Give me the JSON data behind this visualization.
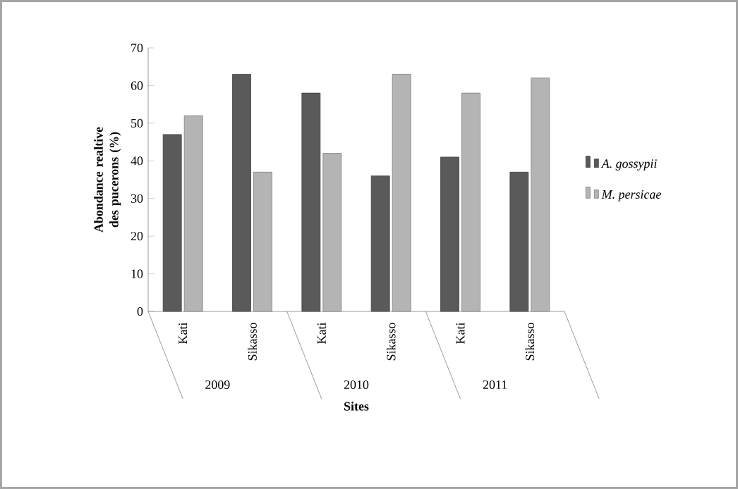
{
  "chart_data": {
    "type": "bar",
    "xlabel": "Sites",
    "ylabel": "Abondance realtive des pucerons (%)",
    "categories": [
      "Kati",
      "Sikasso",
      "Kati",
      "Sikasso",
      "Kati",
      "Sikasso"
    ],
    "series": [
      {
        "name": "A. gossypii",
        "color": "#5a5a5a",
        "values": [
          47,
          63,
          58,
          36,
          41,
          37
        ]
      },
      {
        "name": "M. persicae",
        "color": "#b4b4b4",
        "values": [
          52,
          37,
          42,
          63,
          58,
          62
        ]
      }
    ],
    "annotations": [
      "2009",
      "2010",
      "2011"
    ],
    "ylim": [
      0,
      70
    ],
    "yticks": [
      0,
      10,
      20,
      30,
      40,
      50,
      60,
      70
    ],
    "legend": "right"
  }
}
